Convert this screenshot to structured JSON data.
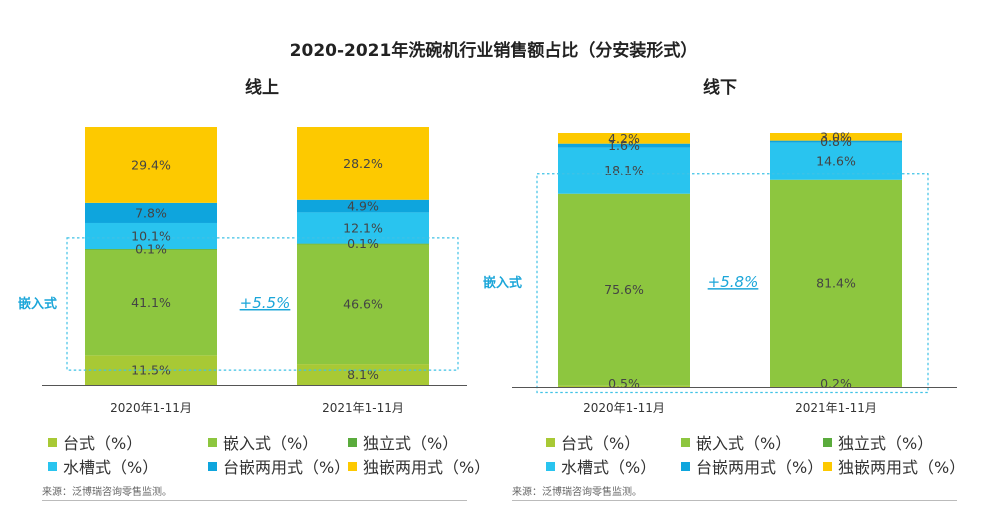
{
  "title": "2020-2021年洗碗机行业销售额占比（分安装形式）",
  "colors": {
    "台式": "#a8c935",
    "嵌入式": "#8dc63f",
    "独立式": "#5aab3c",
    "水槽式": "#29c4ef",
    "台嵌两用式": "#0ea5dd",
    "独嵌两用式": "#fdc900"
  },
  "chart_data": [
    {
      "type": "bar",
      "stacked": true,
      "title": "线上",
      "categories": [
        "2020年1-11月",
        "2021年1-11月"
      ],
      "series": [
        {
          "name": "台式（%）",
          "key": "台式",
          "values": [
            11.5,
            8.1
          ],
          "labels": [
            "11.5%",
            "8.1%"
          ]
        },
        {
          "name": "嵌入式（%）",
          "key": "嵌入式",
          "values": [
            41.1,
            46.6
          ],
          "labels": [
            "41.1%",
            "46.6%"
          ]
        },
        {
          "name": "独立式（%）",
          "key": "独立式",
          "values": [
            0.1,
            0.1
          ],
          "labels": [
            "0.1%",
            "0.1%"
          ]
        },
        {
          "name": "水槽式（%）",
          "key": "水槽式",
          "values": [
            10.1,
            12.1
          ],
          "labels": [
            "10.1%",
            "12.1%"
          ]
        },
        {
          "name": "台嵌两用式（%）",
          "key": "台嵌两用式",
          "values": [
            7.8,
            4.9
          ],
          "labels": [
            "7.8%",
            "4.9%"
          ]
        },
        {
          "name": "独嵌两用式（%）",
          "key": "独嵌两用式",
          "values": [
            29.4,
            28.2
          ],
          "labels": [
            "29.4%",
            "28.2%"
          ]
        }
      ],
      "highlight": {
        "label": "嵌入式",
        "change": "+5.5%"
      },
      "ylim": [
        0,
        100
      ],
      "source": "来源：泛博瑞咨询零售监测。"
    },
    {
      "type": "bar",
      "stacked": true,
      "title": "线下",
      "categories": [
        "2020年1-11月",
        "2021年1-11月"
      ],
      "series": [
        {
          "name": "台式（%）",
          "key": "台式",
          "values": [
            0.5,
            0.2
          ],
          "labels": [
            "0.5%",
            "0.2%"
          ]
        },
        {
          "name": "嵌入式（%）",
          "key": "嵌入式",
          "values": [
            75.6,
            81.4
          ],
          "labels": [
            "75.6%",
            "81.4%"
          ]
        },
        {
          "name": "独立式（%）",
          "key": "独立式",
          "values": [
            0,
            0
          ],
          "labels": [
            "",
            ""
          ]
        },
        {
          "name": "水槽式（%）",
          "key": "水槽式",
          "values": [
            18.1,
            14.6
          ],
          "labels": [
            "18.1%",
            "14.6%"
          ]
        },
        {
          "name": "台嵌两用式（%）",
          "key": "台嵌两用式",
          "values": [
            1.6,
            0.8
          ],
          "labels": [
            "1.6%",
            "0.8%"
          ]
        },
        {
          "name": "独嵌两用式（%）",
          "key": "独嵌两用式",
          "values": [
            4.2,
            3.0
          ],
          "labels": [
            "4.2%",
            "3.0%"
          ]
        }
      ],
      "highlight": {
        "label": "嵌入式",
        "change": "+5.8%"
      },
      "ylim": [
        0,
        100
      ],
      "source": "来源：泛博瑞咨询零售监测。"
    }
  ]
}
